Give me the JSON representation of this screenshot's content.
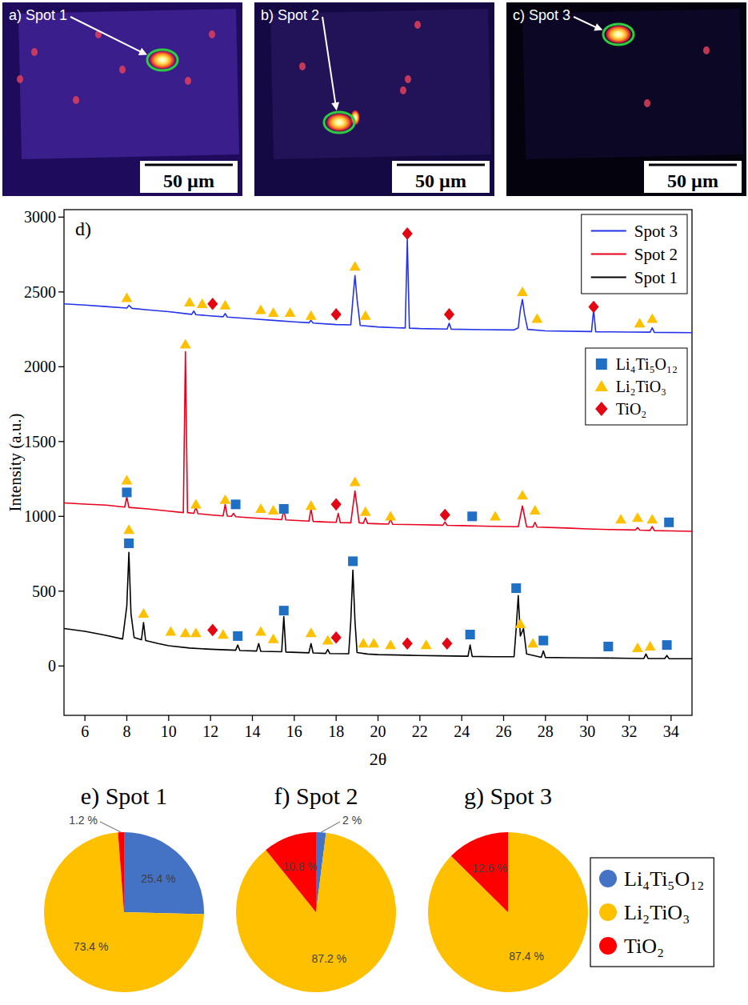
{
  "images": [
    {
      "label": "a) Spot 1",
      "scale_bar": "50 µm"
    },
    {
      "label": "b) Spot 2",
      "scale_bar": "50 µm"
    },
    {
      "label": "c) Spot 3",
      "scale_bar": "50 µm"
    }
  ],
  "chart_data": [
    {
      "type": "line",
      "title": "d)",
      "x_label": "2θ",
      "y_label": "Intensity (a.u.)",
      "xlim": [
        5,
        35
      ],
      "ylim": [
        -330,
        3050
      ],
      "xticks": [
        6,
        8,
        10,
        12,
        14,
        16,
        18,
        20,
        22,
        24,
        26,
        28,
        30,
        32,
        34
      ],
      "yticks": [
        0,
        500,
        1000,
        1500,
        2000,
        2500,
        3000
      ],
      "legend": "upper right",
      "series": [
        {
          "name": "Spot 3",
          "color": "#2433e8",
          "x": [
            5,
            6,
            7,
            8,
            8.1,
            8.25,
            9,
            10,
            11.1,
            11.2,
            11.3,
            12,
            12.6,
            12.7,
            12.8,
            14,
            15,
            16,
            16.7,
            16.8,
            16.9,
            18,
            18.7,
            18.8,
            18.9,
            19.0,
            19.15,
            20,
            21,
            21.3,
            21.4,
            21.5,
            22,
            23.3,
            23.4,
            23.5,
            25,
            26.5,
            26.7,
            26.8,
            26.9,
            27.0,
            27.15,
            28,
            30.2,
            30.3,
            30.4,
            32,
            33.0,
            33.1,
            33.2,
            35
          ],
          "values": [
            2420,
            2412,
            2402,
            2392,
            2410,
            2390,
            2380,
            2368,
            2350,
            2372,
            2348,
            2340,
            2334,
            2355,
            2332,
            2320,
            2310,
            2300,
            2294,
            2310,
            2292,
            2282,
            2280,
            2450,
            2610,
            2450,
            2276,
            2266,
            2260,
            2259,
            2850,
            2258,
            2255,
            2252,
            2290,
            2251,
            2248,
            2246,
            2260,
            2380,
            2450,
            2350,
            2250,
            2240,
            2235,
            2380,
            2234,
            2232,
            2231,
            2260,
            2230,
            2228
          ]
        },
        {
          "name": "Spot 2",
          "color": "#e8001c",
          "x": [
            5,
            6,
            7,
            7.9,
            8.0,
            8.1,
            9,
            10,
            10.7,
            10.8,
            10.9,
            11.2,
            11.3,
            11.4,
            12,
            12.6,
            12.7,
            12.8,
            13.0,
            13.1,
            13.2,
            14,
            15,
            15.4,
            15.5,
            15.6,
            16.7,
            16.8,
            16.9,
            17.5,
            18.0,
            18.1,
            18.2,
            18.7,
            18.9,
            19.1,
            19.3,
            19.4,
            19.5,
            20,
            20.5,
            20.6,
            20.7,
            22,
            23.1,
            23.2,
            23.3,
            24,
            25,
            26,
            26.7,
            26.9,
            27.1,
            27.4,
            27.5,
            27.6,
            29,
            30,
            31,
            32.3,
            32.4,
            32.5,
            33.0,
            33.1,
            33.2,
            34,
            35
          ],
          "values": [
            1090,
            1082,
            1075,
            1062,
            1130,
            1060,
            1050,
            1035,
            1025,
            2100,
            1025,
            1020,
            1060,
            1018,
            1010,
            1003,
            1080,
            1002,
            1000,
            1020,
            998,
            990,
            982,
            978,
            1040,
            976,
            968,
            1050,
            966,
            962,
            960,
            1020,
            958,
            957,
            1170,
            957,
            954,
            990,
            953,
            950,
            948,
            980,
            947,
            944,
            941,
            962,
            940,
            938,
            935,
            932,
            931,
            1070,
            930,
            929,
            960,
            928,
            922,
            916,
            912,
            909,
            925,
            908,
            906,
            932,
            905,
            903,
            900
          ]
        },
        {
          "name": "Spot 1",
          "color": "#000000",
          "x": [
            5,
            6,
            7,
            7.8,
            8.0,
            8.1,
            8.2,
            8.35,
            8.7,
            8.8,
            8.9,
            9.5,
            10,
            11,
            12,
            13.2,
            13.3,
            13.4,
            14.2,
            14.3,
            14.4,
            15.4,
            15.5,
            15.6,
            16.7,
            16.8,
            16.9,
            17.5,
            17.6,
            17.7,
            18.6,
            18.7,
            18.8,
            18.9,
            19.0,
            19.5,
            20,
            21,
            22,
            23,
            24.3,
            24.4,
            24.5,
            25.5,
            26.5,
            26.6,
            26.7,
            26.8,
            26.95,
            27.1,
            27.8,
            27.9,
            28.0,
            29,
            30,
            31,
            32,
            32.7,
            32.8,
            32.9,
            33.7,
            33.8,
            33.9,
            35
          ],
          "values": [
            250,
            232,
            205,
            180,
            400,
            760,
            350,
            190,
            175,
            290,
            170,
            150,
            135,
            120,
            112,
            105,
            140,
            103,
            100,
            150,
            98,
            95,
            330,
            93,
            88,
            150,
            87,
            84,
            110,
            83,
            82,
            300,
            640,
            300,
            90,
            80,
            76,
            73,
            70,
            68,
            65,
            140,
            64,
            62,
            62,
            250,
            470,
            200,
            250,
            80,
            58,
            100,
            57,
            55,
            54,
            53,
            51,
            50,
            80,
            50,
            50,
            70,
            49,
            48
          ]
        }
      ],
      "phases": [
        {
          "name": "Li₄Ti₅O₁₂",
          "color": "#1f6fc5",
          "marker": "square",
          "x": [
            8.0,
            13.2,
            15.5,
            24.5,
            33.9,
            8.1,
            13.3,
            15.5,
            18.8,
            24.4,
            26.6,
            27.9,
            31.0,
            33.8
          ],
          "y": [
            1160,
            1080,
            1050,
            1000,
            960,
            820,
            200,
            370,
            700,
            210,
            520,
            170,
            130,
            140
          ]
        },
        {
          "name": "Li₂TiO₃",
          "color": "#ffc000",
          "marker": "triangle",
          "x": [
            8.0,
            11.0,
            11.6,
            12.7,
            14.4,
            15.0,
            15.8,
            16.8,
            18.9,
            19.4,
            26.9,
            27.6,
            32.5,
            33.1,
            8.0,
            10.8,
            11.3,
            12.7,
            14.4,
            15.0,
            16.8,
            18.9,
            19.4,
            20.6,
            25.6,
            26.9,
            27.5,
            31.6,
            32.4,
            33.1,
            8.1,
            8.8,
            10.1,
            10.8,
            11.3,
            12.6,
            14.4,
            15.0,
            16.8,
            17.6,
            19.3,
            19.8,
            20.6,
            22.3,
            26.8,
            27.4,
            32.4,
            33.0
          ],
          "y": [
            2460,
            2430,
            2420,
            2410,
            2380,
            2360,
            2360,
            2340,
            2670,
            2340,
            2500,
            2320,
            2290,
            2320,
            1240,
            2150,
            1080,
            1110,
            1050,
            1040,
            1070,
            1230,
            1030,
            1000,
            1000,
            1140,
            1040,
            980,
            990,
            980,
            910,
            350,
            230,
            220,
            220,
            210,
            230,
            180,
            220,
            170,
            150,
            150,
            140,
            140,
            280,
            150,
            120,
            130
          ]
        },
        {
          "name": "TiO₂",
          "color": "#e30613",
          "marker": "diamond",
          "x": [
            12.1,
            18.0,
            21.4,
            23.4,
            30.3,
            18.0,
            23.2,
            12.1,
            18.0,
            21.4,
            23.3
          ],
          "y": [
            2420,
            2350,
            2890,
            2350,
            2400,
            1080,
            1010,
            240,
            190,
            150,
            150
          ]
        }
      ]
    },
    {
      "type": "pie",
      "title": "e) Spot 1",
      "categories": [
        "Li₄Ti₅O₁₂",
        "Li₂TiO₃",
        "TiO₂"
      ],
      "values": [
        25.4,
        73.4,
        1.2
      ],
      "value_labels": [
        "25.4 %",
        "73.4 %",
        "1.2 %"
      ],
      "colors": [
        "#4472c4",
        "#ffc000",
        "#ff0000"
      ],
      "data_labels": true,
      "legend": "right"
    },
    {
      "type": "pie",
      "title": "f) Spot 2",
      "categories": [
        "Li₄Ti₅O₁₂",
        "Li₂TiO₃",
        "TiO₂"
      ],
      "values": [
        2,
        87.2,
        10.8
      ],
      "value_labels": [
        "2 %",
        "87.2 %",
        "10.8 %"
      ],
      "colors": [
        "#4472c4",
        "#ffc000",
        "#ff0000"
      ],
      "data_labels": true
    },
    {
      "type": "pie",
      "title": "g) Spot 3",
      "categories": [
        "Li₂TiO₃",
        "TiO₂"
      ],
      "values": [
        87.4,
        12.6
      ],
      "value_labels": [
        "87.4 %",
        "12.6 %"
      ],
      "colors": [
        "#ffc000",
        "#ff0000"
      ],
      "data_labels": true
    }
  ]
}
